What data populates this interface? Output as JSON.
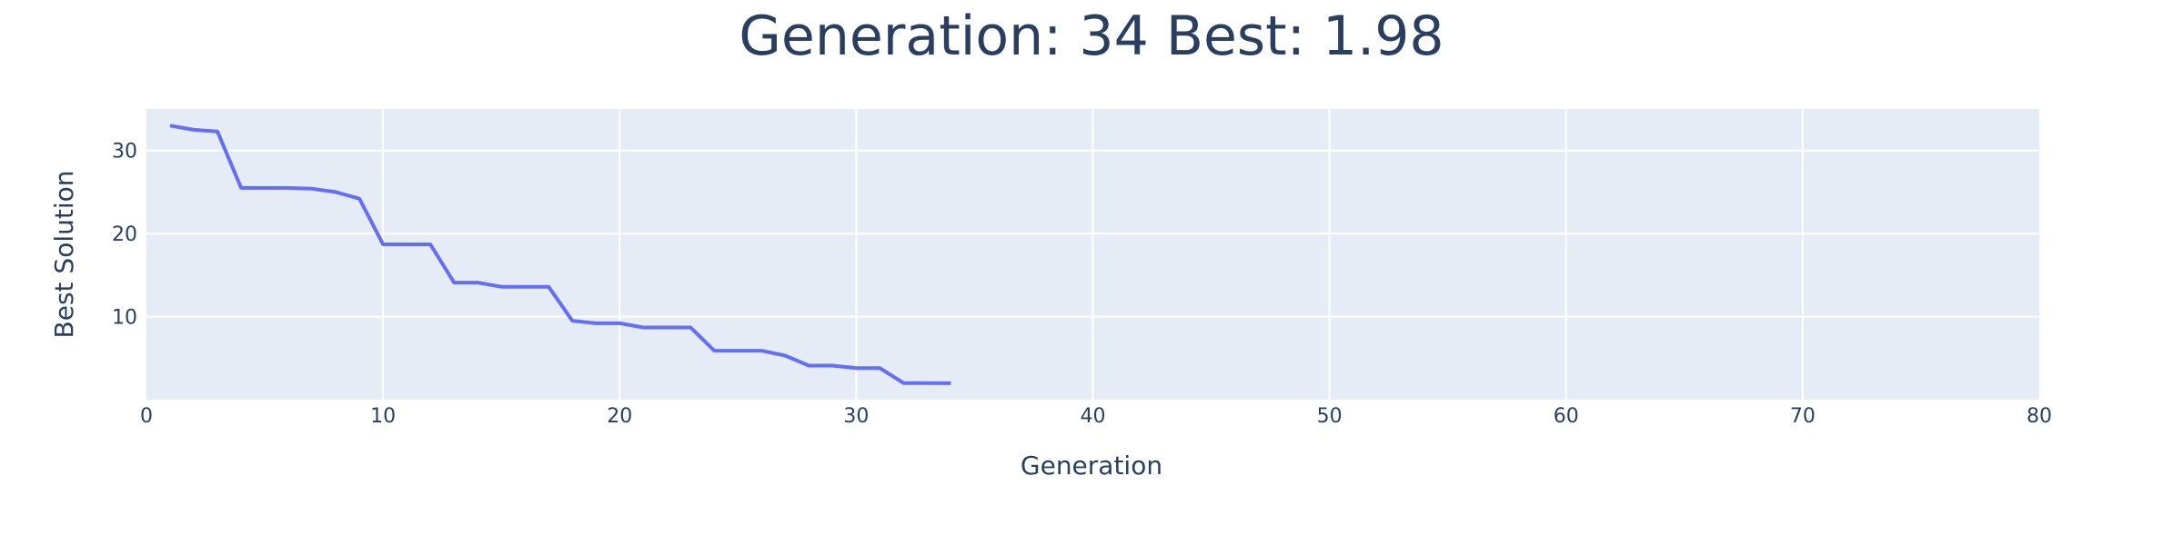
{
  "chart_data": {
    "type": "line",
    "title": "Generation: 34 Best: 1.98",
    "xlabel": "Generation",
    "ylabel": "Best Solution",
    "xlim": [
      0,
      80
    ],
    "ylim": [
      0,
      35
    ],
    "xticks": [
      0,
      10,
      20,
      30,
      40,
      50,
      60,
      70,
      80
    ],
    "yticks": [
      10,
      20,
      30
    ],
    "grid": true,
    "colors": {
      "line": "#636efa",
      "plot_bg": "#e5ecf6",
      "grid": "#ffffff",
      "text": "#2a3f5f"
    },
    "x": [
      1,
      2,
      3,
      4,
      5,
      6,
      7,
      8,
      9,
      10,
      11,
      12,
      13,
      14,
      15,
      16,
      17,
      18,
      19,
      20,
      21,
      22,
      23,
      24,
      25,
      26,
      27,
      28,
      29,
      30,
      31,
      32,
      33,
      34
    ],
    "y": [
      33.0,
      32.5,
      32.3,
      25.5,
      25.5,
      25.5,
      25.4,
      25.0,
      24.2,
      18.7,
      18.7,
      18.7,
      14.1,
      14.1,
      13.6,
      13.6,
      13.6,
      9.5,
      9.2,
      9.2,
      8.7,
      8.7,
      8.7,
      5.9,
      5.9,
      5.9,
      5.3,
      4.1,
      4.1,
      3.8,
      3.8,
      2.0,
      2.0,
      1.98
    ]
  }
}
